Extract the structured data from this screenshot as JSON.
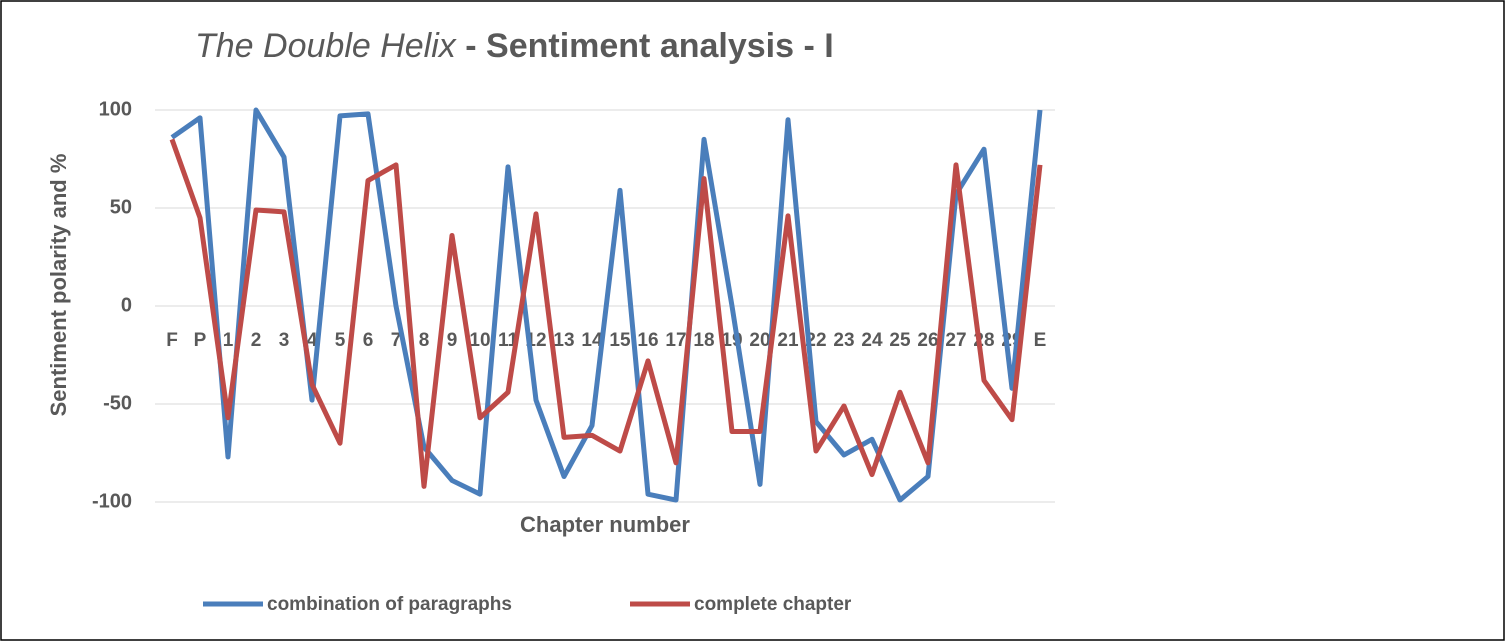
{
  "chart_data": {
    "type": "line",
    "title": [
      "The Double Helix",
      " - Sentiment analysis - I"
    ],
    "x_label": "Chapter number",
    "y_label": "Sentiment polarity and %",
    "categories": [
      "F",
      "P",
      "1",
      "2",
      "3",
      "4",
      "5",
      "6",
      "7",
      "8",
      "9",
      "10",
      "11",
      "12",
      "13",
      "14",
      "15",
      "16",
      "17",
      "18",
      "19",
      "20",
      "21",
      "22",
      "23",
      "24",
      "25",
      "26",
      "27",
      "28",
      "29",
      "E"
    ],
    "series": [
      {
        "name": "combination of paragraphs",
        "color": "#4a7ebb",
        "values": [
          86,
          96,
          -77,
          100,
          76,
          -48,
          97,
          98,
          0,
          -72,
          -89,
          -96,
          71,
          -48,
          -87,
          -61,
          59,
          -96,
          -99,
          85,
          0,
          -91,
          95,
          -59,
          -76,
          -68,
          -99,
          -87,
          57,
          80,
          -42,
          100
        ]
      },
      {
        "name": "complete chapter",
        "color": "#be4b48",
        "values": [
          85,
          45,
          -57,
          49,
          48,
          -40,
          -70,
          64,
          72,
          -92,
          36,
          -57,
          -44,
          47,
          -67,
          -66,
          -74,
          -28,
          -80,
          65,
          -64,
          -64,
          46,
          -74,
          -51,
          -86,
          -44,
          -80,
          72,
          -38,
          -58,
          72
        ]
      }
    ],
    "ylim": [
      -100,
      100
    ],
    "yticks": [
      -100,
      -50,
      0,
      50,
      100
    ],
    "grid": true
  }
}
